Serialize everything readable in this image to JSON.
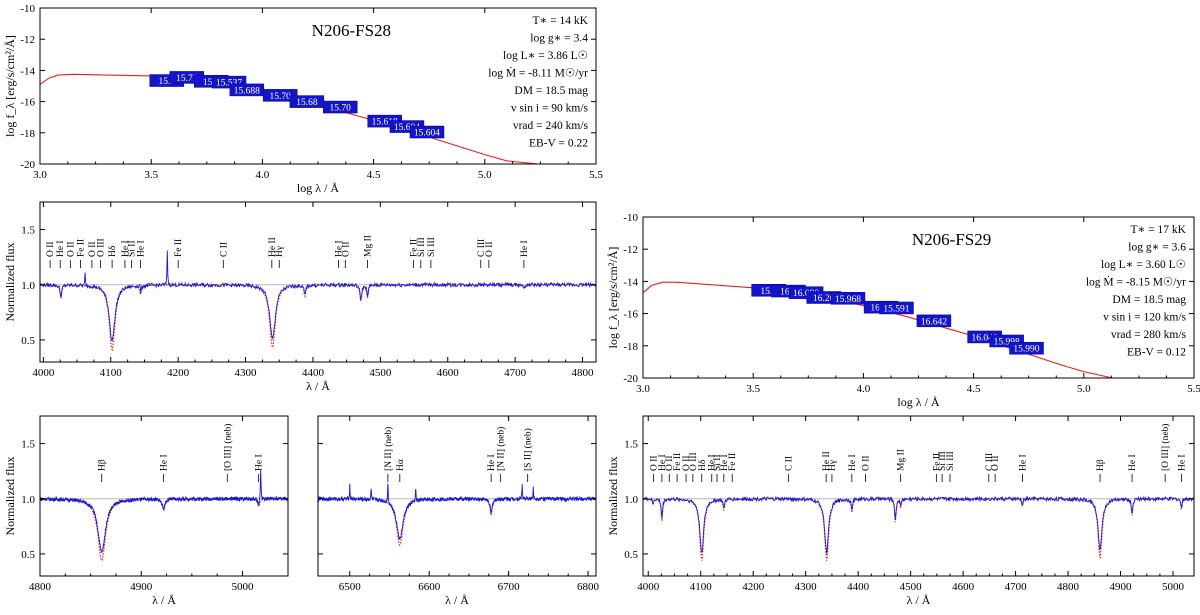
{
  "chart_data": {
    "type": "line",
    "panels": [
      {
        "id": "sed-fs28",
        "kind": "sed",
        "star": "N206-FS28",
        "xlabel": "log λ / Å",
        "ylabel": "log f_λ [erg/s/cm²/Å]",
        "xlim": [
          3.0,
          5.5
        ],
        "ylim": [
          -20,
          -10
        ],
        "xticks": [
          3.0,
          3.5,
          4.0,
          4.5,
          5.0,
          5.5
        ],
        "xtick_labels": [
          "3.0",
          "3.5",
          "4.0",
          "4.5",
          "5.0",
          "5.5"
        ],
        "yticks": [
          -20,
          -18,
          -16,
          -14,
          -12,
          -10
        ],
        "ytick_labels": [
          "-20",
          "-18",
          "-16",
          "-14",
          "-12",
          "-10"
        ],
        "params": [
          "T∗ = 14 kK",
          "log g∗ = 3.4",
          "log L∗ = 3.86 L☉",
          "log Ṁ = -8.11 M☉/yr",
          "DM = 18.5 mag",
          "v sin i = 90 km/s",
          "vrad = 240 km/s",
          "EB-V = 0.22"
        ],
        "model_curve": [
          [
            3.0,
            -14.9
          ],
          [
            3.04,
            -14.5
          ],
          [
            3.08,
            -14.3
          ],
          [
            3.15,
            -14.25
          ],
          [
            3.3,
            -14.3
          ],
          [
            3.5,
            -14.35
          ],
          [
            3.6,
            -14.45
          ],
          [
            3.7,
            -14.6
          ],
          [
            3.8,
            -14.85
          ],
          [
            3.9,
            -15.1
          ],
          [
            4.0,
            -15.35
          ],
          [
            4.1,
            -15.7
          ],
          [
            4.2,
            -16.05
          ],
          [
            4.3,
            -16.4
          ],
          [
            4.4,
            -16.8
          ],
          [
            4.5,
            -17.2
          ],
          [
            4.6,
            -17.6
          ],
          [
            4.7,
            -18.05
          ],
          [
            4.8,
            -18.5
          ],
          [
            4.9,
            -18.95
          ],
          [
            5.0,
            -19.4
          ],
          [
            5.1,
            -19.8
          ],
          [
            5.24,
            -20.0
          ]
        ],
        "photometry": [
          {
            "x": 3.57,
            "y": -14.65,
            "label": "15.7"
          },
          {
            "x": 3.66,
            "y": -14.45,
            "label": "15.71"
          },
          {
            "x": 3.77,
            "y": -14.7,
            "label": "15.7"
          },
          {
            "x": 3.85,
            "y": -14.75,
            "label": "15.537"
          },
          {
            "x": 3.93,
            "y": -15.25,
            "label": "15.688"
          },
          {
            "x": 4.08,
            "y": -15.6,
            "label": "15.70"
          },
          {
            "x": 4.2,
            "y": -16.0,
            "label": "15.68"
          },
          {
            "x": 4.35,
            "y": -16.35,
            "label": "15.70"
          },
          {
            "x": 4.55,
            "y": -17.25,
            "label": "15.618"
          },
          {
            "x": 4.65,
            "y": -17.6,
            "label": "15.604"
          },
          {
            "x": 4.74,
            "y": -17.95,
            "label": "15.604"
          }
        ]
      },
      {
        "id": "sed-fs29",
        "kind": "sed",
        "star": "N206-FS29",
        "xlabel": "log λ / Å",
        "ylabel": "log f_λ [erg/s/cm²/Å]",
        "xlim": [
          3.0,
          5.5
        ],
        "ylim": [
          -20,
          -10
        ],
        "xticks": [
          3.0,
          3.5,
          4.0,
          4.5,
          5.0,
          5.5
        ],
        "xtick_labels": [
          "3.0",
          "3.5",
          "4.0",
          "4.5",
          "5.0",
          "5.5"
        ],
        "yticks": [
          -20,
          -18,
          -16,
          -14,
          -12,
          -10
        ],
        "ytick_labels": [
          "-20",
          "-18",
          "-16",
          "-14",
          "-12",
          "-10"
        ],
        "params": [
          "T∗ = 17 kK",
          "log g∗ = 3.6",
          "log L∗ = 3.60 L☉",
          "log Ṁ = -8.15 M☉/yr",
          "DM = 18.5 mag",
          "v sin i = 120 km/s",
          "vrad = 280 km/s",
          "EB-V = 0.12"
        ],
        "model_curve": [
          [
            3.0,
            -14.7
          ],
          [
            3.04,
            -14.25
          ],
          [
            3.09,
            -14.05
          ],
          [
            3.15,
            -14.05
          ],
          [
            3.3,
            -14.2
          ],
          [
            3.5,
            -14.4
          ],
          [
            3.6,
            -14.5
          ],
          [
            3.7,
            -14.7
          ],
          [
            3.8,
            -14.95
          ],
          [
            3.9,
            -15.2
          ],
          [
            4.0,
            -15.5
          ],
          [
            4.1,
            -15.85
          ],
          [
            4.2,
            -16.2
          ],
          [
            4.3,
            -16.6
          ],
          [
            4.4,
            -17.0
          ],
          [
            4.5,
            -17.4
          ],
          [
            4.6,
            -17.85
          ],
          [
            4.7,
            -18.3
          ],
          [
            4.8,
            -18.75
          ],
          [
            4.9,
            -19.2
          ],
          [
            5.0,
            -19.6
          ],
          [
            5.13,
            -20.0
          ]
        ],
        "photometry": [
          {
            "x": 3.57,
            "y": -14.55,
            "label": "15.5"
          },
          {
            "x": 3.66,
            "y": -14.6,
            "label": "16.5"
          },
          {
            "x": 3.74,
            "y": -14.7,
            "label": "16.090"
          },
          {
            "x": 3.82,
            "y": -15.0,
            "label": "16.20"
          },
          {
            "x": 3.93,
            "y": -15.05,
            "label": "15.968"
          },
          {
            "x": 4.08,
            "y": -15.6,
            "label": "16.10"
          },
          {
            "x": 4.15,
            "y": -15.65,
            "label": "15.591"
          },
          {
            "x": 4.32,
            "y": -16.45,
            "label": "16.642"
          },
          {
            "x": 4.55,
            "y": -17.45,
            "label": "16.048"
          },
          {
            "x": 4.65,
            "y": -17.7,
            "label": "15.998"
          },
          {
            "x": 4.74,
            "y": -18.15,
            "label": "15.990"
          }
        ]
      },
      {
        "id": "blue-fs28",
        "kind": "spec",
        "xlabel": "λ / Å",
        "ylabel": "Normalized flux",
        "xlim": [
          3995,
          4820
        ],
        "ylim": [
          0.3,
          1.75
        ],
        "xticks": [
          4000,
          4100,
          4200,
          4300,
          4400,
          4500,
          4600,
          4700,
          4800
        ],
        "xtick_labels": [
          "4000",
          "4100",
          "4200",
          "4300",
          "4400",
          "4500",
          "4600",
          "4700",
          "4800"
        ],
        "yticks": [
          0.5,
          1.0,
          1.5
        ],
        "ytick_labels": [
          "0.5",
          "1.0",
          "1.5"
        ],
        "lines": [
          {
            "c": 4102,
            "d": 0.59,
            "w": 5
          },
          {
            "c": 4340,
            "d": 0.57,
            "w": 5
          },
          {
            "c": 4026,
            "d": 0.12,
            "w": 1.5
          },
          {
            "c": 4144,
            "d": 0.08,
            "w": 1.5
          },
          {
            "c": 4388,
            "d": 0.1,
            "w": 1.5
          },
          {
            "c": 4471,
            "d": 0.15,
            "w": 1.6
          },
          {
            "c": 4481,
            "d": 0.12,
            "w": 1.2
          },
          {
            "c": 4713,
            "d": 0.04,
            "w": 1.2
          }
        ],
        "emission_spikes": [
          [
            4184,
            0.38
          ],
          [
            4062,
            0.12
          ],
          [
            4143,
            0.1
          ]
        ],
        "line_ids": [
          {
            "x": 4010,
            "t": "O II"
          },
          {
            "x": 4025,
            "t": "He I"
          },
          {
            "x": 4040,
            "t": "O II"
          },
          {
            "x": 4055,
            "t": "Fe II"
          },
          {
            "x": 4072,
            "t": "O II"
          },
          {
            "x": 4085,
            "t": "O III"
          },
          {
            "x": 4102,
            "t": "Hδ"
          },
          {
            "x": 4121,
            "t": "He I"
          },
          {
            "x": 4131,
            "t": "Si II"
          },
          {
            "x": 4144,
            "t": "He I"
          },
          {
            "x": 4200,
            "t": "Fe II"
          },
          {
            "x": 4267,
            "t": "C II"
          },
          {
            "x": 4339,
            "t": "He II"
          },
          {
            "x": 4350,
            "t": "Hγ"
          },
          {
            "x": 4438,
            "t": "He I"
          },
          {
            "x": 4448,
            "t": "O II"
          },
          {
            "x": 4481,
            "t": "Mg II"
          },
          {
            "x": 4549,
            "t": "Fe II"
          },
          {
            "x": 4560,
            "t": "Si III"
          },
          {
            "x": 4575,
            "t": "Si III"
          },
          {
            "x": 4649,
            "t": "C III"
          },
          {
            "x": 4661,
            "t": "O II"
          },
          {
            "x": 4713,
            "t": "He I"
          }
        ]
      },
      {
        "id": "hbeta-fs28",
        "kind": "spec",
        "xlabel": "λ / Å",
        "ylabel": "Normalized flux",
        "xlim": [
          4800,
          5045
        ],
        "ylim": [
          0.3,
          1.75
        ],
        "xticks": [
          4800,
          4900,
          5000
        ],
        "xtick_labels": [
          "4800",
          "4900",
          "5000"
        ],
        "yticks": [
          0.5,
          1.0,
          1.5
        ],
        "ytick_labels": [
          "0.5",
          "1.0",
          "1.5"
        ],
        "lines": [
          {
            "c": 4861,
            "d": 0.56,
            "w": 4.5
          },
          {
            "c": 4922,
            "d": 0.1,
            "w": 1.6
          },
          {
            "c": 5016,
            "d": 0.07,
            "w": 1.2
          }
        ],
        "emission_spikes": [
          [
            5018,
            0.28
          ]
        ],
        "line_ids": [
          {
            "x": 4861,
            "t": "Hβ"
          },
          {
            "x": 4922,
            "t": "He I"
          },
          {
            "x": 4985,
            "t": "[O III] (neb)"
          },
          {
            "x": 5016,
            "t": "He I"
          }
        ]
      },
      {
        "id": "halpha-fs28",
        "kind": "spec",
        "xlabel": "λ / Å",
        "ylabel": "",
        "xlim": [
          6460,
          6810
        ],
        "ylim": [
          0.3,
          1.75
        ],
        "xticks": [
          6500,
          6600,
          6700,
          6800
        ],
        "xtick_labels": [
          "6500",
          "6600",
          "6700",
          "6800"
        ],
        "yticks": [
          0.5,
          1.0,
          1.5
        ],
        "ytick_labels": [
          "",
          "",
          ""
        ],
        "lines": [
          {
            "c": 6563,
            "d": 0.42,
            "w": 5
          },
          {
            "c": 6678,
            "d": 0.15,
            "w": 1.6
          }
        ],
        "emission_spikes": [
          [
            6548,
            0.2
          ],
          [
            6583,
            0.12
          ],
          [
            6717,
            0.14
          ],
          [
            6731,
            0.1
          ],
          [
            6500,
            0.13
          ],
          [
            6527,
            0.1
          ]
        ],
        "line_ids": [
          {
            "x": 6548,
            "t": "[N II] (neb)"
          },
          {
            "x": 6563,
            "t": "Hα"
          },
          {
            "x": 6678,
            "t": "He I"
          },
          {
            "x": 6690,
            "t": "[N II] (neb)"
          },
          {
            "x": 6724,
            "t": "[S II] (neb)"
          }
        ]
      },
      {
        "id": "full-fs29",
        "kind": "spec",
        "xlabel": "λ / Å",
        "ylabel": "Normalized flux",
        "xlim": [
          3990,
          5040
        ],
        "ylim": [
          0.3,
          1.75
        ],
        "xticks": [
          4000,
          4100,
          4200,
          4300,
          4400,
          4500,
          4600,
          4700,
          4800,
          4900,
          5000
        ],
        "xtick_labels": [
          "4000",
          "4100",
          "4200",
          "4300",
          "4400",
          "4500",
          "4600",
          "4700",
          "4800",
          "4900",
          "5000"
        ],
        "yticks": [
          0.5,
          1.0,
          1.5
        ],
        "ytick_labels": [
          "0.5",
          "1.0",
          "1.5"
        ],
        "lines": [
          {
            "c": 4102,
            "d": 0.56,
            "w": 4.5
          },
          {
            "c": 4340,
            "d": 0.56,
            "w": 4.5
          },
          {
            "c": 4861,
            "d": 0.54,
            "w": 4.5
          },
          {
            "c": 4026,
            "d": 0.2,
            "w": 1.6
          },
          {
            "c": 4009,
            "d": 0.06,
            "w": 1.0
          },
          {
            "c": 4144,
            "d": 0.1,
            "w": 1.5
          },
          {
            "c": 4388,
            "d": 0.12,
            "w": 1.5
          },
          {
            "c": 4471,
            "d": 0.22,
            "w": 1.6
          },
          {
            "c": 4481,
            "d": 0.08,
            "w": 1.1
          },
          {
            "c": 4713,
            "d": 0.07,
            "w": 1.3
          },
          {
            "c": 4922,
            "d": 0.15,
            "w": 1.6
          },
          {
            "c": 5016,
            "d": 0.1,
            "w": 1.3
          }
        ],
        "emission_spikes": [],
        "line_ids": [
          {
            "x": 4010,
            "t": "O II"
          },
          {
            "x": 4026,
            "t": "He I"
          },
          {
            "x": 4040,
            "t": "O II"
          },
          {
            "x": 4055,
            "t": "Fe II"
          },
          {
            "x": 4072,
            "t": "O II"
          },
          {
            "x": 4085,
            "t": "O III"
          },
          {
            "x": 4102,
            "t": "Hδ"
          },
          {
            "x": 4121,
            "t": "He I"
          },
          {
            "x": 4131,
            "t": "Si II"
          },
          {
            "x": 4144,
            "t": "He I"
          },
          {
            "x": 4160,
            "t": "Fe II"
          },
          {
            "x": 4267,
            "t": "C II"
          },
          {
            "x": 4339,
            "t": "He II"
          },
          {
            "x": 4350,
            "t": "Hγ"
          },
          {
            "x": 4388,
            "t": "He I"
          },
          {
            "x": 4414,
            "t": "O II"
          },
          {
            "x": 4481,
            "t": "Mg II"
          },
          {
            "x": 4549,
            "t": "Fe II"
          },
          {
            "x": 4560,
            "t": "Si III"
          },
          {
            "x": 4575,
            "t": "Si III"
          },
          {
            "x": 4649,
            "t": "C III"
          },
          {
            "x": 4661,
            "t": "O II"
          },
          {
            "x": 4713,
            "t": "He I"
          },
          {
            "x": 4861,
            "t": "Hβ"
          },
          {
            "x": 4922,
            "t": "He I"
          },
          {
            "x": 4985,
            "t": "[O III] (neb)"
          },
          {
            "x": 5016,
            "t": "He I"
          }
        ]
      }
    ]
  }
}
